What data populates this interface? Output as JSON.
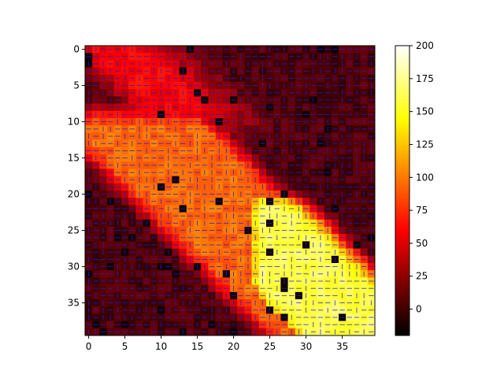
{
  "chart_data": {
    "type": "heatmap",
    "title": "",
    "xlabel": "",
    "ylabel": "",
    "grid_size": [
      40,
      40
    ],
    "xlim": [
      -0.5,
      39.5
    ],
    "ylim": [
      39.5,
      -0.5
    ],
    "x_ticks": [
      0,
      5,
      10,
      15,
      20,
      25,
      30,
      35
    ],
    "y_ticks": [
      0,
      5,
      10,
      15,
      20,
      25,
      30,
      35
    ],
    "colormap": "hot",
    "value_range": [
      -20,
      200
    ],
    "colorbar_ticks": [
      0,
      25,
      50,
      75,
      100,
      125,
      150,
      175,
      200
    ],
    "overlay": "blue quiver vector field",
    "arrow_color": "#1a1aff",
    "value_regions_description": [
      {
        "region": "top-left band (rows 0-10, cols 0-10)",
        "approx_value": 60
      },
      {
        "region": "diagonal band (rows 8-28, cols 5-30)",
        "approx_value": 100
      },
      {
        "region": "right/lower-right block (rows 18-39, cols 22-39)",
        "approx_value": 160
      },
      {
        "region": "lower-left and top-right background",
        "approx_value": 5
      }
    ]
  }
}
